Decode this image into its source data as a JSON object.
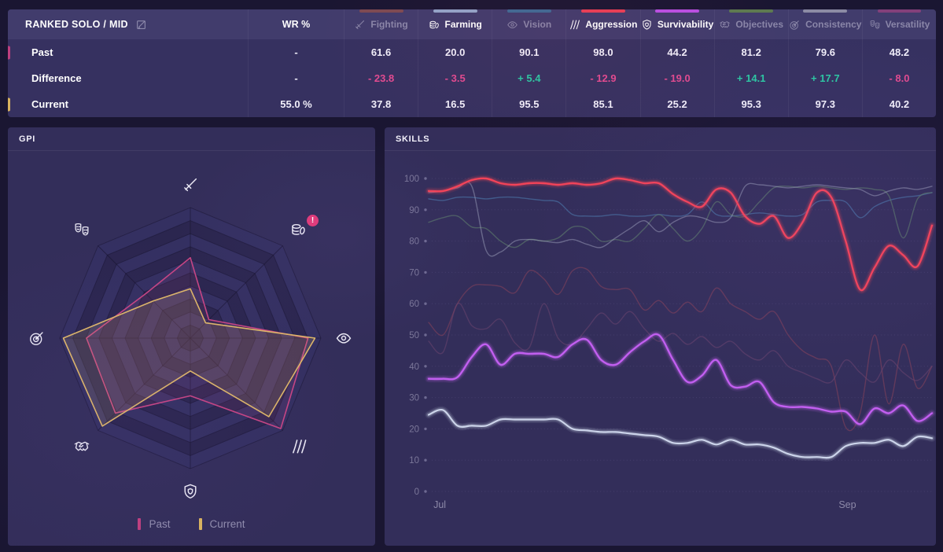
{
  "table": {
    "title": "RANKED SOLO / MID",
    "wr_header": "WR %",
    "columns": [
      {
        "key": "fighting",
        "label": "Fighting",
        "color": "#7e4a52",
        "active": false
      },
      {
        "key": "farming",
        "label": "Farming",
        "color": "#93a4c8",
        "active": true
      },
      {
        "key": "vision",
        "label": "Vision",
        "color": "#3e6a94",
        "active": false
      },
      {
        "key": "aggression",
        "label": "Aggression",
        "color": "#e83f55",
        "active": true
      },
      {
        "key": "survivability",
        "label": "Survivability",
        "color": "#b94fe2",
        "active": true
      },
      {
        "key": "objectives",
        "label": "Objectives",
        "color": "#5d7a50",
        "active": false
      },
      {
        "key": "consistency",
        "label": "Consistency",
        "color": "#8c8ba4",
        "active": false
      },
      {
        "key": "versatility",
        "label": "Versatility",
        "color": "#83407a",
        "active": false
      }
    ],
    "rows": [
      {
        "label": "Past",
        "marker": "#bf3f7f",
        "wr": "-",
        "values": [
          "61.6",
          "20.0",
          "90.1",
          "98.0",
          "44.2",
          "81.2",
          "79.6",
          "48.2"
        ]
      },
      {
        "label": "Difference",
        "marker": null,
        "wr": "-",
        "values": [
          "- 23.8",
          "- 3.5",
          "+ 5.4",
          "- 12.9",
          "- 19.0",
          "+ 14.1",
          "+ 17.7",
          "- 8.0"
        ]
      },
      {
        "label": "Current",
        "marker": "#d9b35f",
        "wr": "55.0 %",
        "values": [
          "37.8",
          "16.5",
          "95.5",
          "85.1",
          "25.2",
          "95.3",
          "97.3",
          "40.2"
        ]
      }
    ]
  },
  "gpi_panel": {
    "title": "GPI",
    "alert_badge": "!",
    "legend": [
      {
        "label": "Past",
        "color": "#bf3f7f"
      },
      {
        "label": "Current",
        "color": "#d9b35f"
      }
    ]
  },
  "skills_panel": {
    "title": "SKILLS"
  },
  "chart_data": [
    {
      "type": "radar",
      "title": "GPI",
      "max": 100,
      "rings": 10,
      "axes": [
        {
          "key": "fighting",
          "label": "Fighting"
        },
        {
          "key": "farming",
          "label": "Farming",
          "alert": true
        },
        {
          "key": "vision",
          "label": "Vision"
        },
        {
          "key": "aggression",
          "label": "Aggression"
        },
        {
          "key": "survivability",
          "label": "Survivability"
        },
        {
          "key": "objectives",
          "label": "Objectives"
        },
        {
          "key": "consistency",
          "label": "Consistency"
        },
        {
          "key": "versatility",
          "label": "Versatility"
        }
      ],
      "series": [
        {
          "name": "Past",
          "color": "#c64583",
          "fill": "rgba(198,69,131,0.10)",
          "values": [
            61.6,
            20.0,
            90.1,
            98.0,
            44.2,
            81.2,
            79.6,
            48.2
          ]
        },
        {
          "name": "Current",
          "color": "#ddb668",
          "fill": "rgba(221,182,104,0.14)",
          "values": [
            37.8,
            16.5,
            95.5,
            85.1,
            25.2,
            95.3,
            97.3,
            40.2
          ]
        }
      ]
    },
    {
      "type": "line",
      "title": "SKILLS",
      "ylim": [
        0,
        100
      ],
      "yticks": [
        0,
        10,
        20,
        30,
        40,
        50,
        60,
        70,
        80,
        90,
        100
      ],
      "xticks": [
        {
          "label": "Jul",
          "t": 0.022
        },
        {
          "label": "Sep",
          "t": 0.832
        }
      ],
      "series": [
        {
          "name": "Fighting",
          "color": "#82415a",
          "opacity": 0.6,
          "width": 1.4,
          "glow": false,
          "values": [
            54,
            50,
            60,
            65.5,
            66,
            65.5,
            63.5,
            70.5,
            68,
            63,
            70.5,
            71,
            65.5,
            64.5,
            64.5,
            58,
            61,
            57,
            60.5,
            57.5,
            65,
            60,
            57.5,
            55,
            57.5,
            50,
            45,
            42.5,
            40,
            20.5,
            25,
            50,
            28,
            47,
            33,
            40
          ]
        },
        {
          "name": "Versatility",
          "color": "#6b4670",
          "opacity": 0.55,
          "width": 1.4,
          "glow": false,
          "values": [
            48,
            44.5,
            60,
            53,
            52,
            55,
            47.5,
            46,
            60,
            49,
            47,
            52,
            57,
            53.5,
            57.5,
            52,
            48,
            50.5,
            47,
            49.5,
            46,
            48,
            44,
            42,
            45,
            40,
            38,
            36,
            35,
            42,
            38,
            35,
            42,
            38,
            35.5,
            40
          ]
        },
        {
          "name": "Vision",
          "color": "#4f82b4",
          "opacity": 0.55,
          "width": 1.4,
          "glow": false,
          "values": [
            93.5,
            93,
            94,
            94,
            93.5,
            94,
            94,
            93.5,
            93,
            92.5,
            88.5,
            88,
            88,
            88.5,
            88,
            88,
            88.5,
            88,
            88.5,
            92.5,
            88.5,
            88,
            88.5,
            89,
            88.5,
            88,
            88.5,
            92.5,
            93,
            92.5,
            87.5,
            91,
            93,
            94,
            94.5,
            95.5
          ]
        },
        {
          "name": "Objectives",
          "color": "#5f7f6d",
          "opacity": 0.6,
          "width": 1.4,
          "glow": false,
          "values": [
            86,
            87.5,
            88,
            84.5,
            84,
            80,
            78,
            80.5,
            80,
            81,
            84.5,
            84,
            80,
            80.5,
            80,
            84,
            88.5,
            84,
            80,
            84,
            92.5,
            88.5,
            88,
            92.5,
            97,
            97.5,
            97,
            97.5,
            97,
            96.5,
            97,
            96.5,
            94.5,
            81,
            93.5,
            95.5
          ]
        },
        {
          "name": "Consistency",
          "color": "#a9aec6",
          "opacity": 0.45,
          "width": 1.4,
          "glow": false,
          "values": [
            95.5,
            96,
            97,
            97.5,
            77,
            76.5,
            80,
            80.5,
            80,
            79.5,
            80.5,
            79,
            78,
            81,
            84,
            86.5,
            83,
            86,
            88,
            87.5,
            86,
            87.5,
            97.5,
            98,
            97.5,
            97,
            97.5,
            98,
            97.5,
            97,
            96.5,
            94.5,
            96,
            97,
            96.5,
            97.5
          ]
        },
        {
          "name": "Farming",
          "color": "#ccd4ea",
          "opacity": 1,
          "width": 2.2,
          "glow": true,
          "values": [
            24.5,
            26,
            21,
            21,
            21,
            23,
            23,
            23,
            23,
            23,
            20,
            19.5,
            19,
            19,
            18.5,
            18,
            17.5,
            15.5,
            15.5,
            16.5,
            15,
            16.5,
            15,
            15,
            14,
            12,
            11,
            11,
            11,
            14.5,
            15.5,
            15.5,
            16.5,
            14.5,
            17.5,
            17
          ]
        },
        {
          "name": "Survivability",
          "color": "#c25ff0",
          "opacity": 1,
          "width": 2.4,
          "glow": true,
          "values": [
            36,
            36,
            36.5,
            43,
            47,
            40.5,
            44,
            44,
            44,
            43,
            47,
            48.5,
            42,
            40.5,
            44.5,
            48,
            50,
            42,
            35,
            37,
            42,
            34,
            33.5,
            35,
            28.5,
            27,
            27,
            26.5,
            25.5,
            25.5,
            21.5,
            26.5,
            25,
            27.5,
            22.5,
            25
          ]
        },
        {
          "name": "Aggression",
          "color": "#f34358",
          "opacity": 1,
          "width": 2.4,
          "glow": true,
          "values": [
            96,
            96,
            97.5,
            99.5,
            100,
            98.5,
            98,
            98.5,
            98.5,
            98,
            98.5,
            98,
            98.5,
            100,
            99.5,
            98.5,
            98.5,
            95,
            92.5,
            91,
            96.5,
            95.5,
            88,
            85.5,
            88,
            81,
            86,
            95.5,
            94,
            80,
            64.5,
            71.5,
            78.5,
            75.5,
            72,
            85
          ]
        }
      ]
    }
  ]
}
